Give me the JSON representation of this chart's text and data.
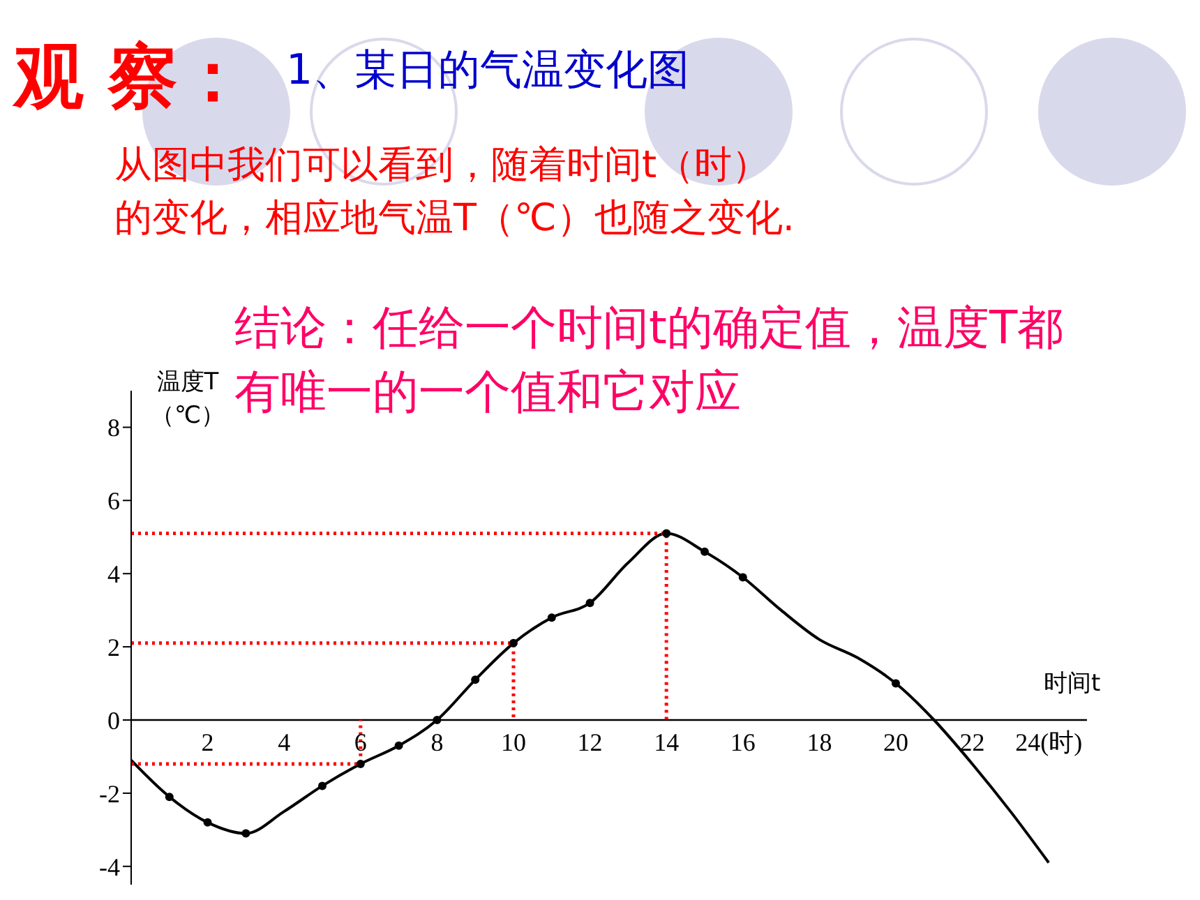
{
  "chart_data": {
    "type": "line",
    "title": "观 察：",
    "subtitle": "1、某日的气温变化图",
    "annotations": [
      "从图中我们可以看到，随着时间t（时）的变化，相应地气温T（℃）也随之变化.",
      "结论：任给一个时间t的确定值，温度T都有唯一的一个值和它对应"
    ],
    "xlabel": "时间t",
    "ylabel": "温度T（℃）",
    "xlim": [
      0,
      25
    ],
    "xticks": [
      2,
      4,
      6,
      8,
      10,
      12,
      14,
      16,
      18,
      20,
      22,
      {
        "value": 24,
        "label": "24(时)"
      }
    ],
    "ylim": [
      -4.5,
      9
    ],
    "yticks": [
      -4,
      -2,
      0,
      2,
      4,
      6,
      8
    ],
    "series": [
      {
        "color": "#000000",
        "marker": "none",
        "line_style": "solid",
        "x": [
          0,
          1,
          2,
          3,
          4,
          5,
          6,
          7,
          8,
          9,
          10,
          11,
          12,
          13,
          14,
          15,
          16,
          17,
          18,
          19,
          20,
          21,
          22,
          23,
          24
        ],
        "values": [
          -1.1,
          -2.1,
          -2.8,
          -3.1,
          -2.5,
          -1.8,
          -1.2,
          -0.7,
          0,
          1.1,
          2.1,
          2.8,
          3.2,
          4.3,
          5.1,
          4.6,
          3.9,
          3.0,
          2.2,
          1.7,
          1.0,
          0,
          -1.2,
          -2.5,
          -3.9
        ]
      },
      {
        "type": "scatter",
        "color": "#000000",
        "marker": "circle",
        "x": [
          1,
          2,
          3,
          5,
          6,
          7,
          8,
          9,
          10,
          11,
          12,
          14,
          15,
          16,
          20
        ],
        "values": [
          -2.1,
          -2.8,
          -3.1,
          -1.8,
          -1.2,
          -0.7,
          0,
          1.1,
          2.1,
          2.8,
          3.2,
          5.1,
          4.6,
          3.9,
          1.0
        ]
      },
      {
        "type": "line",
        "color": "#ff0000",
        "marker": "none",
        "line_style": "dotted",
        "x": [
          0,
          6,
          6
        ],
        "values": [
          -1.2,
          -1.2,
          0
        ]
      },
      {
        "type": "line",
        "color": "#ff0000",
        "marker": "none",
        "line_style": "dotted",
        "x": [
          0,
          10,
          10
        ],
        "values": [
          2.1,
          2.1,
          0
        ]
      },
      {
        "type": "line",
        "color": "#ff0000",
        "marker": "none",
        "line_style": "dotted",
        "x": [
          0,
          14,
          14
        ],
        "values": [
          5.1,
          5.1,
          0
        ]
      }
    ]
  }
}
